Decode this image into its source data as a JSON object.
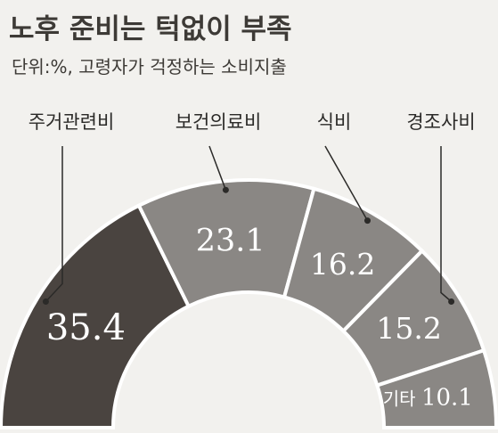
{
  "header": {
    "title": "노후 준비는 턱없이 부족",
    "subtitle": "단위:%, 고령자가 걱정하는 소비지출"
  },
  "chart_data": {
    "type": "pie",
    "shape": "half-donut",
    "title": "노후 준비는 턱없이 부족",
    "subtitle": "단위:%, 고령자가 걱정하는 소비지출",
    "unit": "%",
    "categories": [
      "주거관련비",
      "보건의료비",
      "식비",
      "경조사비",
      "기타"
    ],
    "values": [
      35.4,
      23.1,
      16.2,
      15.2,
      10.1
    ],
    "value_labels": [
      "35.4",
      "23.1",
      "16.2",
      "15.2",
      "10.1"
    ],
    "colors": [
      "#4a4440",
      "#8a8784",
      "#8a8784",
      "#8a8784",
      "#8a8784"
    ],
    "separator_color": "#ffffff",
    "label_color": "#ffffff"
  },
  "colors": {
    "background": "#f2f1ee",
    "text": "#2b2a28",
    "dark_segment": "#4a4440",
    "light_segment": "#8a8784"
  }
}
